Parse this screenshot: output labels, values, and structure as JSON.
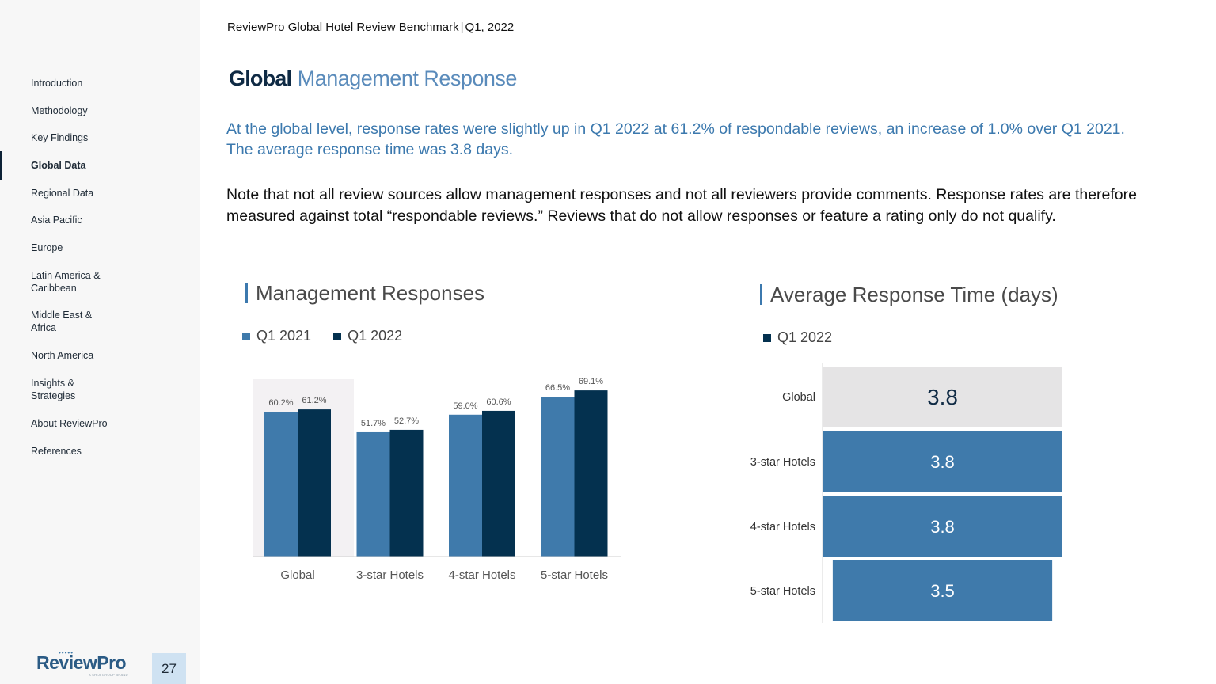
{
  "header": {
    "report": "ReviewPro Global Hotel Review Benchmark",
    "separator": "|",
    "period": "Q1, 2022"
  },
  "sidebar": {
    "items": [
      {
        "label": "Introduction"
      },
      {
        "label": "Methodology"
      },
      {
        "label": "Key Findings"
      },
      {
        "label": "Global Data"
      },
      {
        "label": "Regional Data"
      },
      {
        "label": "Asia Pacific"
      },
      {
        "label": "Europe"
      },
      {
        "label": "Latin America & Caribbean"
      },
      {
        "label": "Middle East & Africa"
      },
      {
        "label": "North America"
      },
      {
        "label": "Insights & Strategies"
      },
      {
        "label": "About ReviewPro"
      },
      {
        "label": "References"
      }
    ],
    "active": "Global Data",
    "logo": {
      "text": "ReviewPro",
      "dots": "•••••",
      "sub": "A SHIJI GROUP BRAND"
    },
    "page_number": "27"
  },
  "page": {
    "title_bold": "Global",
    "title_light": "Management Response",
    "intro": "At the global level, response rates were slightly up in Q1 2022 at 61.2% of respondable reviews, an increase of 1.0% over Q1 2021. The average response time was 3.8 days.",
    "note": "Note that not all review sources allow management responses and not all reviewers provide comments. Response rates are therefore measured against total “respondable reviews.” Reviews that do not allow responses or feature a rating only do not qualify."
  },
  "colors": {
    "q1_2021": "#3f7aab",
    "q1_2022": "#04314f",
    "highlight_bg": "#f3f1f3",
    "bar_blue": "#3f7aab",
    "global_bg": "#e5e4e5"
  },
  "chart_data": [
    {
      "type": "bar",
      "title": "Management Responses",
      "categories": [
        "Global",
        "3-star Hotels",
        "4-star Hotels",
        "5-star Hotels"
      ],
      "series": [
        {
          "name": "Q1 2021",
          "values": [
            60.2,
            51.7,
            59.0,
            66.5
          ],
          "labels": [
            "60.2%",
            "51.7%",
            "59.0%",
            "66.5%"
          ]
        },
        {
          "name": "Q1 2022",
          "values": [
            61.2,
            52.7,
            60.6,
            69.1
          ],
          "labels": [
            "61.2%",
            "52.7%",
            "60.6%",
            "69.1%"
          ]
        }
      ],
      "ylim": [
        0,
        80
      ],
      "highlighted_category": "Global",
      "legend": "top-left",
      "grid": false
    },
    {
      "type": "bar",
      "orientation": "horizontal",
      "title": "Average Response Time (days)",
      "categories": [
        "Global",
        "3-star Hotels",
        "4-star Hotels",
        "5-star Hotels"
      ],
      "series": [
        {
          "name": "Q1 2022",
          "values": [
            3.8,
            3.8,
            3.8,
            3.5
          ],
          "labels": [
            "3.8",
            "3.8",
            "3.8",
            "3.5"
          ]
        }
      ],
      "xlim": [
        0,
        3.8
      ],
      "highlighted_category": "Global",
      "legend": "top-left",
      "grid": false
    }
  ]
}
